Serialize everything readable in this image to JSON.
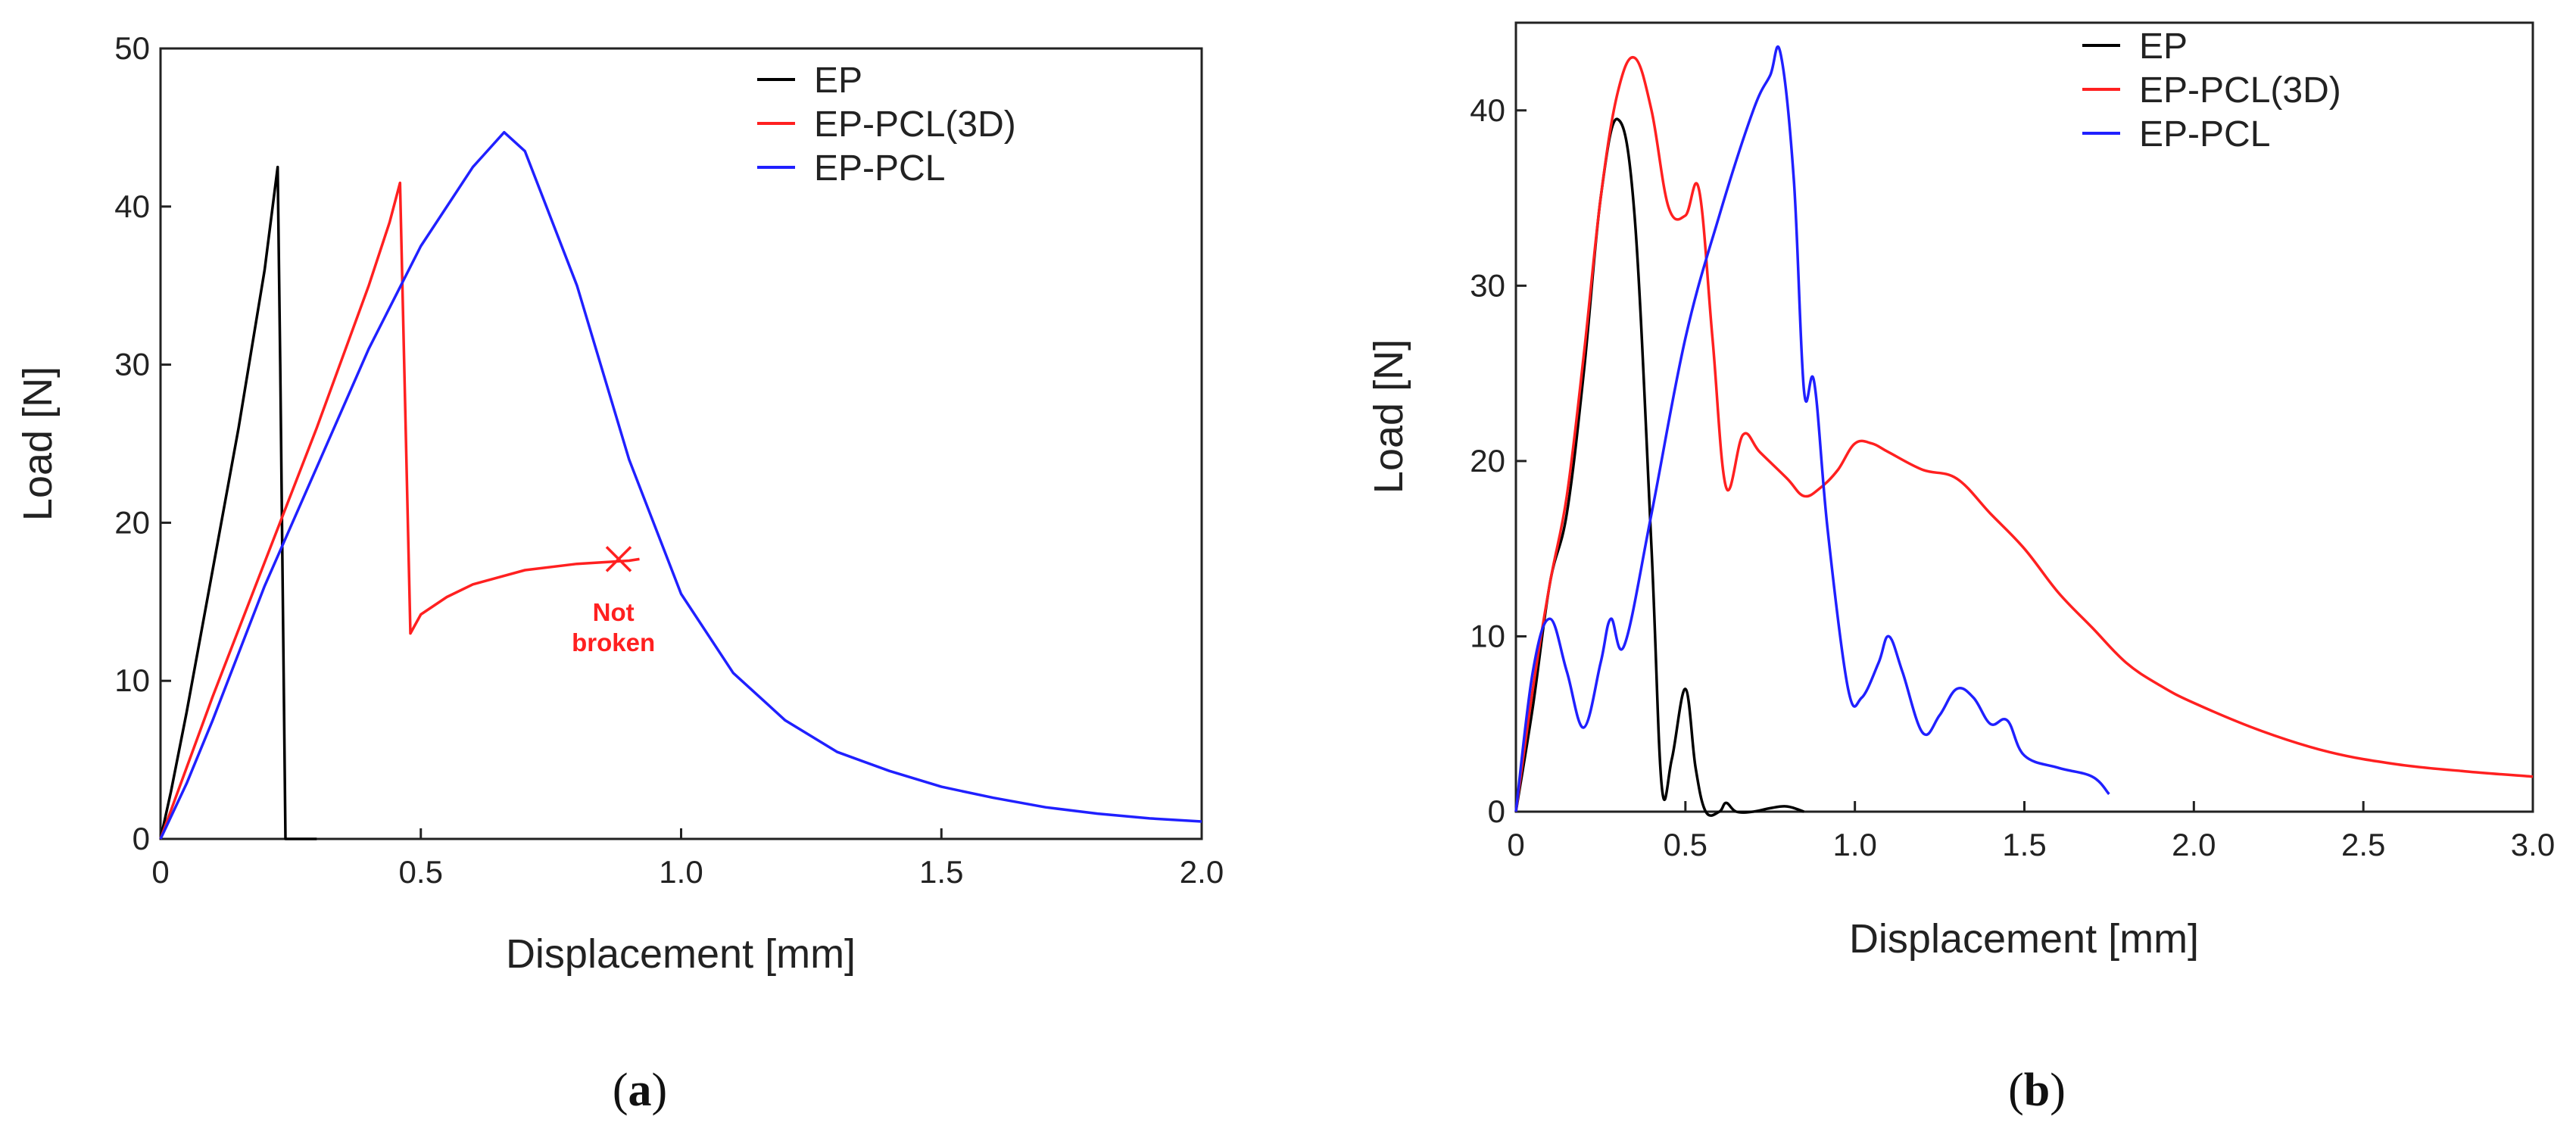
{
  "chart_data": [
    {
      "type": "line",
      "panel_label": "a",
      "xlabel": "Displacement [mm]",
      "ylabel": "Load [N]",
      "xlim": [
        0,
        2.0
      ],
      "ylim": [
        0,
        50
      ],
      "xticks": [
        0,
        0.5,
        1.0,
        1.5,
        2.0
      ],
      "xtick_labels": [
        "0",
        "0.5",
        "1.0",
        "1.5",
        "2.0"
      ],
      "yticks": [
        0,
        10,
        20,
        30,
        40,
        50
      ],
      "ytick_labels": [
        "0",
        "10",
        "20",
        "30",
        "40",
        "50"
      ],
      "legend_location": "top-right",
      "series": [
        {
          "name": "EP",
          "color": "#000000",
          "x": [
            0,
            0.02,
            0.05,
            0.1,
            0.15,
            0.2,
            0.225,
            0.23,
            0.24,
            0.26,
            0.3
          ],
          "y": [
            0,
            3,
            8,
            17,
            26,
            36,
            42.5,
            30,
            0,
            0,
            0
          ]
        },
        {
          "name": "EP-PCL(3D)",
          "color": "#ff2020",
          "x": [
            0,
            0.05,
            0.1,
            0.2,
            0.3,
            0.4,
            0.44,
            0.46,
            0.48,
            0.5,
            0.55,
            0.6,
            0.7,
            0.8,
            0.9,
            0.92
          ],
          "y": [
            0,
            4.5,
            9,
            17.5,
            26,
            35,
            39,
            41.5,
            13,
            14.2,
            15.3,
            16.1,
            17,
            17.4,
            17.6,
            17.7
          ]
        },
        {
          "name": "EP-PCL",
          "color": "#2020ff",
          "x": [
            0,
            0.05,
            0.1,
            0.2,
            0.3,
            0.4,
            0.5,
            0.6,
            0.66,
            0.7,
            0.8,
            0.9,
            1.0,
            1.1,
            1.2,
            1.3,
            1.4,
            1.5,
            1.6,
            1.7,
            1.8,
            1.9,
            2.0
          ],
          "y": [
            0,
            3.5,
            7.5,
            16,
            23.5,
            31,
            37.5,
            42.5,
            44.7,
            43.5,
            35,
            24,
            15.5,
            10.5,
            7.5,
            5.5,
            4.3,
            3.3,
            2.6,
            2.0,
            1.6,
            1.3,
            1.1
          ]
        }
      ],
      "annotations": [
        {
          "text_lines": [
            "Not",
            "broken"
          ],
          "x": 0.87,
          "y": 13.8,
          "marker": "x",
          "marker_x": 0.88,
          "marker_y": 17.7,
          "color": "#ff2020"
        }
      ]
    },
    {
      "type": "line",
      "panel_label": "b",
      "xlabel": "Displacement [mm]",
      "ylabel": "Load [N]",
      "xlim": [
        0,
        3.0
      ],
      "ylim": [
        0,
        45
      ],
      "xticks": [
        0,
        0.5,
        1.0,
        1.5,
        2.0,
        2.5,
        3.0
      ],
      "xtick_labels": [
        "0",
        "0.5",
        "1.0",
        "1.5",
        "2.0",
        "2.5",
        "3.0"
      ],
      "yticks": [
        0,
        10,
        20,
        30,
        40
      ],
      "ytick_labels": [
        "0",
        "10",
        "20",
        "30",
        "40"
      ],
      "legend_location": "top-right",
      "series": [
        {
          "name": "EP",
          "color": "#000000",
          "x": [
            0,
            0.05,
            0.1,
            0.15,
            0.2,
            0.25,
            0.3,
            0.35,
            0.4,
            0.43,
            0.46,
            0.5,
            0.53,
            0.56,
            0.6,
            0.62,
            0.65,
            0.7,
            0.75,
            0.8,
            0.85
          ],
          "y": [
            0,
            6,
            13,
            17,
            25,
            35,
            39.5,
            34,
            15,
            1.5,
            3,
            7,
            2.5,
            0,
            0,
            0.5,
            0,
            0,
            0.2,
            0.3,
            0
          ]
        },
        {
          "name": "EP-PCL(3D)",
          "color": "#ff2020",
          "x": [
            0,
            0.05,
            0.1,
            0.15,
            0.2,
            0.25,
            0.3,
            0.35,
            0.4,
            0.45,
            0.5,
            0.54,
            0.58,
            0.62,
            0.67,
            0.72,
            0.8,
            0.85,
            0.9,
            0.95,
            1.0,
            1.05,
            1.1,
            1.2,
            1.3,
            1.4,
            1.5,
            1.6,
            1.7,
            1.8,
            1.9,
            2.0,
            2.2,
            2.4,
            2.6,
            2.8,
            3.0
          ],
          "y": [
            0,
            7,
            13,
            18,
            26,
            35,
            41,
            43,
            40,
            34.5,
            34,
            35.5,
            27,
            18.5,
            21.5,
            20.5,
            19,
            18,
            18.5,
            19.5,
            21,
            21,
            20.5,
            19.5,
            19,
            17,
            15,
            12.5,
            10.5,
            8.5,
            7.2,
            6.2,
            4.6,
            3.4,
            2.7,
            2.3,
            2.0
          ]
        },
        {
          "name": "EP-PCL",
          "color": "#2020ff",
          "x": [
            0,
            0.05,
            0.1,
            0.15,
            0.2,
            0.25,
            0.28,
            0.32,
            0.4,
            0.5,
            0.6,
            0.7,
            0.75,
            0.78,
            0.82,
            0.85,
            0.88,
            0.92,
            0.98,
            1.02,
            1.07,
            1.1,
            1.14,
            1.2,
            1.25,
            1.3,
            1.35,
            1.4,
            1.45,
            1.5,
            1.6,
            1.7,
            1.75
          ],
          "y": [
            0,
            8,
            11,
            8,
            4.8,
            8.5,
            11,
            9.5,
            17,
            27,
            34,
            40,
            42,
            43.3,
            36,
            24,
            24.5,
            16,
            7,
            6.5,
            8.5,
            10,
            8,
            4.5,
            5.5,
            7,
            6.5,
            5,
            5.2,
            3.2,
            2.5,
            2,
            1
          ]
        }
      ]
    }
  ],
  "captions": {
    "a": "a",
    "b": "b"
  }
}
